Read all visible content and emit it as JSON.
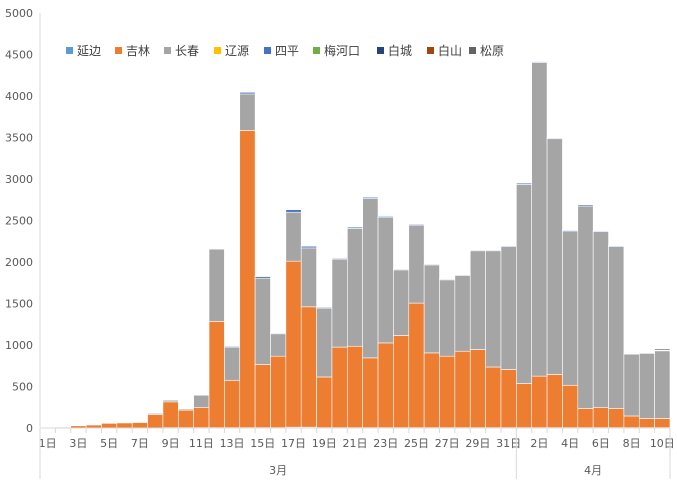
{
  "chart_data": {
    "type": "bar",
    "stacked": true,
    "title": "",
    "xlabel": "",
    "ylabel": "",
    "ylim": [
      0,
      5000
    ],
    "yticks": [
      0,
      500,
      1000,
      1500,
      2000,
      2500,
      3000,
      3500,
      4000,
      4500,
      5000
    ],
    "grid": false,
    "legend_position": "top-left",
    "categories": [
      "1日",
      "2日",
      "3日",
      "4日",
      "5日",
      "6日",
      "7日",
      "8日",
      "9日",
      "10日",
      "11日",
      "12日",
      "13日",
      "14日",
      "15日",
      "16日",
      "17日",
      "18日",
      "19日",
      "20日",
      "21日",
      "22日",
      "23日",
      "24日",
      "25日",
      "26日",
      "27日",
      "28日",
      "29日",
      "30日",
      "31日",
      "1日",
      "2日",
      "3日",
      "4日",
      "5日",
      "6日",
      "7日",
      "8日",
      "9日",
      "10日"
    ],
    "x_tick_labels": [
      "1日",
      "3日",
      "5日",
      "7日",
      "9日",
      "11日",
      "13日",
      "15日",
      "17日",
      "19日",
      "21日",
      "23日",
      "25日",
      "27日",
      "29日",
      "31日",
      "2日",
      "4日",
      "6日",
      "8日",
      "10日"
    ],
    "month_groups": [
      {
        "label": "3月",
        "start": 0,
        "count": 31
      },
      {
        "label": "4月",
        "start": 31,
        "count": 10
      }
    ],
    "series": [
      {
        "name": "延边",
        "color": "#5B9BD5",
        "values": [
          2,
          2,
          2,
          2,
          2,
          2,
          2,
          2,
          5,
          5,
          5,
          5,
          5,
          5,
          5,
          5,
          10,
          10,
          5,
          5,
          5,
          5,
          5,
          5,
          5,
          5,
          5,
          5,
          5,
          5,
          5,
          5,
          5,
          5,
          5,
          5,
          5,
          5,
          5,
          5,
          5
        ]
      },
      {
        "name": "吉林",
        "color": "#ED7D31",
        "values": [
          5,
          10,
          25,
          35,
          55,
          60,
          65,
          160,
          310,
          210,
          240,
          1280,
          570,
          3580,
          760,
          860,
          2000,
          1450,
          610,
          970,
          980,
          840,
          1020,
          1110,
          1500,
          900,
          860,
          920,
          940,
          730,
          700,
          530,
          620,
          640,
          510,
          230,
          240,
          230,
          140,
          110,
          110
        ]
      },
      {
        "name": "长春",
        "color": "#A5A5A5",
        "values": [
          1,
          1,
          1,
          1,
          1,
          1,
          1,
          15,
          20,
          15,
          150,
          870,
          400,
          440,
          1040,
          270,
          590,
          710,
          830,
          1060,
          1420,
          1920,
          1510,
          790,
          940,
          1060,
          920,
          910,
          1190,
          1400,
          1480,
          2400,
          3780,
          2840,
          1850,
          2440,
          2120,
          1950,
          745,
          785,
          815
        ]
      },
      {
        "name": "辽源",
        "color": "#FFC000",
        "values": [
          0,
          0,
          0,
          0,
          0,
          0,
          0,
          0,
          0,
          0,
          0,
          0,
          0,
          0,
          0,
          0,
          0,
          0,
          0,
          0,
          0,
          0,
          0,
          0,
          0,
          0,
          0,
          0,
          0,
          0,
          0,
          0,
          0,
          0,
          0,
          0,
          0,
          0,
          0,
          0,
          0
        ]
      },
      {
        "name": "四平",
        "color": "#4472C4",
        "values": [
          0,
          0,
          0,
          0,
          0,
          0,
          0,
          5,
          5,
          5,
          5,
          5,
          10,
          20,
          20,
          10,
          30,
          20,
          10,
          10,
          15,
          15,
          15,
          10,
          10,
          10,
          10,
          10,
          10,
          10,
          10,
          15,
          10,
          10,
          15,
          15,
          10,
          10,
          5,
          5,
          5
        ]
      },
      {
        "name": "梅河口",
        "color": "#70AD47",
        "values": [
          0,
          0,
          0,
          0,
          0,
          0,
          0,
          0,
          0,
          0,
          0,
          0,
          0,
          0,
          0,
          0,
          0,
          0,
          0,
          0,
          0,
          0,
          0,
          0,
          0,
          0,
          0,
          0,
          0,
          0,
          0,
          0,
          0,
          0,
          0,
          0,
          0,
          0,
          0,
          0,
          0
        ]
      },
      {
        "name": "白城",
        "color": "#264478",
        "values": [
          0,
          0,
          0,
          0,
          0,
          0,
          0,
          0,
          0,
          0,
          0,
          0,
          5,
          5,
          5,
          5,
          5,
          5,
          5,
          5,
          5,
          5,
          5,
          5,
          5,
          5,
          5,
          5,
          5,
          5,
          5,
          5,
          5,
          5,
          5,
          5,
          5,
          5,
          5,
          5,
          5
        ]
      },
      {
        "name": "白山",
        "color": "#9E480E",
        "values": [
          0,
          0,
          0,
          0,
          0,
          0,
          0,
          0,
          0,
          0,
          0,
          0,
          0,
          0,
          0,
          0,
          0,
          0,
          0,
          0,
          0,
          0,
          0,
          0,
          0,
          0,
          0,
          0,
          0,
          0,
          0,
          0,
          0,
          0,
          0,
          0,
          0,
          0,
          0,
          0,
          0
        ]
      },
      {
        "name": "松原",
        "color": "#636363",
        "values": [
          0,
          0,
          0,
          0,
          0,
          0,
          0,
          0,
          0,
          0,
          0,
          0,
          0,
          0,
          0,
          0,
          0,
          0,
          0,
          0,
          0,
          0,
          0,
          0,
          0,
          0,
          0,
          0,
          0,
          0,
          0,
          0,
          0,
          0,
          0,
          0,
          0,
          5,
          5,
          5,
          15
        ]
      }
    ]
  }
}
